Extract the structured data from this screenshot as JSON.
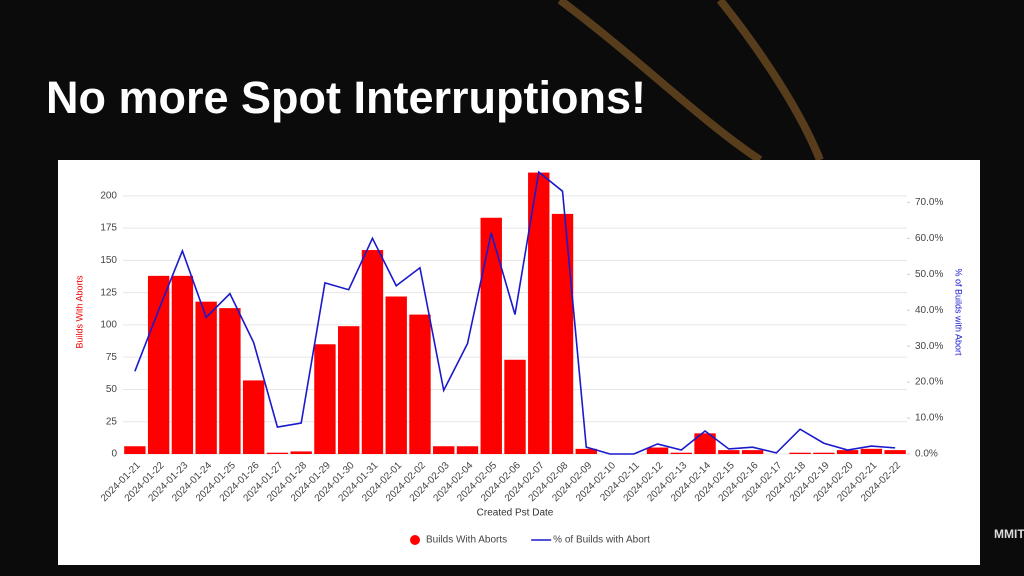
{
  "slide": {
    "title": "No more Spot Interruptions!",
    "logo_text": "MMIT"
  },
  "chart_data": {
    "type": "bar",
    "x_label": "Created Pst Date",
    "y_label": "Builds With Aborts",
    "y2_label": "% of Builds with Abort",
    "categories": [
      "2024-01-21",
      "2024-01-22",
      "2024-01-23",
      "2024-01-24",
      "2024-01-25",
      "2024-01-26",
      "2024-01-27",
      "2024-01-28",
      "2024-01-29",
      "2024-01-30",
      "2024-01-31",
      "2024-02-01",
      "2024-02-02",
      "2024-02-03",
      "2024-02-04",
      "2024-02-05",
      "2024-02-06",
      "2024-02-07",
      "2024-02-08",
      "2024-02-09",
      "2024-02-10",
      "2024-02-11",
      "2024-02-12",
      "2024-02-13",
      "2024-02-14",
      "2024-02-15",
      "2024-02-16",
      "2024-02-17",
      "2024-02-18",
      "2024-02-19",
      "2024-02-20",
      "2024-02-21",
      "2024-02-22"
    ],
    "series": [
      {
        "name": "Builds With Aborts",
        "type": "bar",
        "color": "#ff0000",
        "values": [
          6,
          138,
          138,
          118,
          113,
          57,
          1,
          2,
          85,
          99,
          158,
          122,
          108,
          6,
          6,
          183,
          73,
          218,
          186,
          4,
          0,
          0,
          5,
          1,
          16,
          3,
          3,
          0,
          1,
          1,
          3,
          4,
          3
        ]
      },
      {
        "name": "% of Builds with Abort",
        "type": "line",
        "axis": "y2",
        "color": "#1a1acc",
        "values": [
          23,
          40,
          56.5,
          38,
          44.6,
          31,
          7.5,
          8.6,
          47.6,
          45.7,
          60,
          46.8,
          51.8,
          17.7,
          30.7,
          61.5,
          38.8,
          78.4,
          73.1,
          1.9,
          0,
          0,
          2.8,
          1.1,
          6.4,
          1.4,
          1.9,
          0.3,
          6.9,
          3,
          1.1,
          2.2,
          1.7
        ]
      }
    ],
    "ylim": [
      0,
      220
    ],
    "yticks": [
      0,
      25,
      50,
      75,
      100,
      125,
      150,
      175,
      200
    ],
    "y2lim": [
      0,
      79
    ],
    "y2ticks": [
      {
        "value": 0,
        "label": "0.0%"
      },
      {
        "value": 10,
        "label": "10.0%"
      },
      {
        "value": 20,
        "label": "20.0%"
      },
      {
        "value": 30,
        "label": "30.0%"
      },
      {
        "value": 40,
        "label": "40.0%"
      },
      {
        "value": 50,
        "label": "50.0%"
      },
      {
        "value": 60,
        "label": "60.0%"
      },
      {
        "value": 70,
        "label": "70.0%"
      }
    ],
    "grid": true,
    "legend": "bottom"
  }
}
